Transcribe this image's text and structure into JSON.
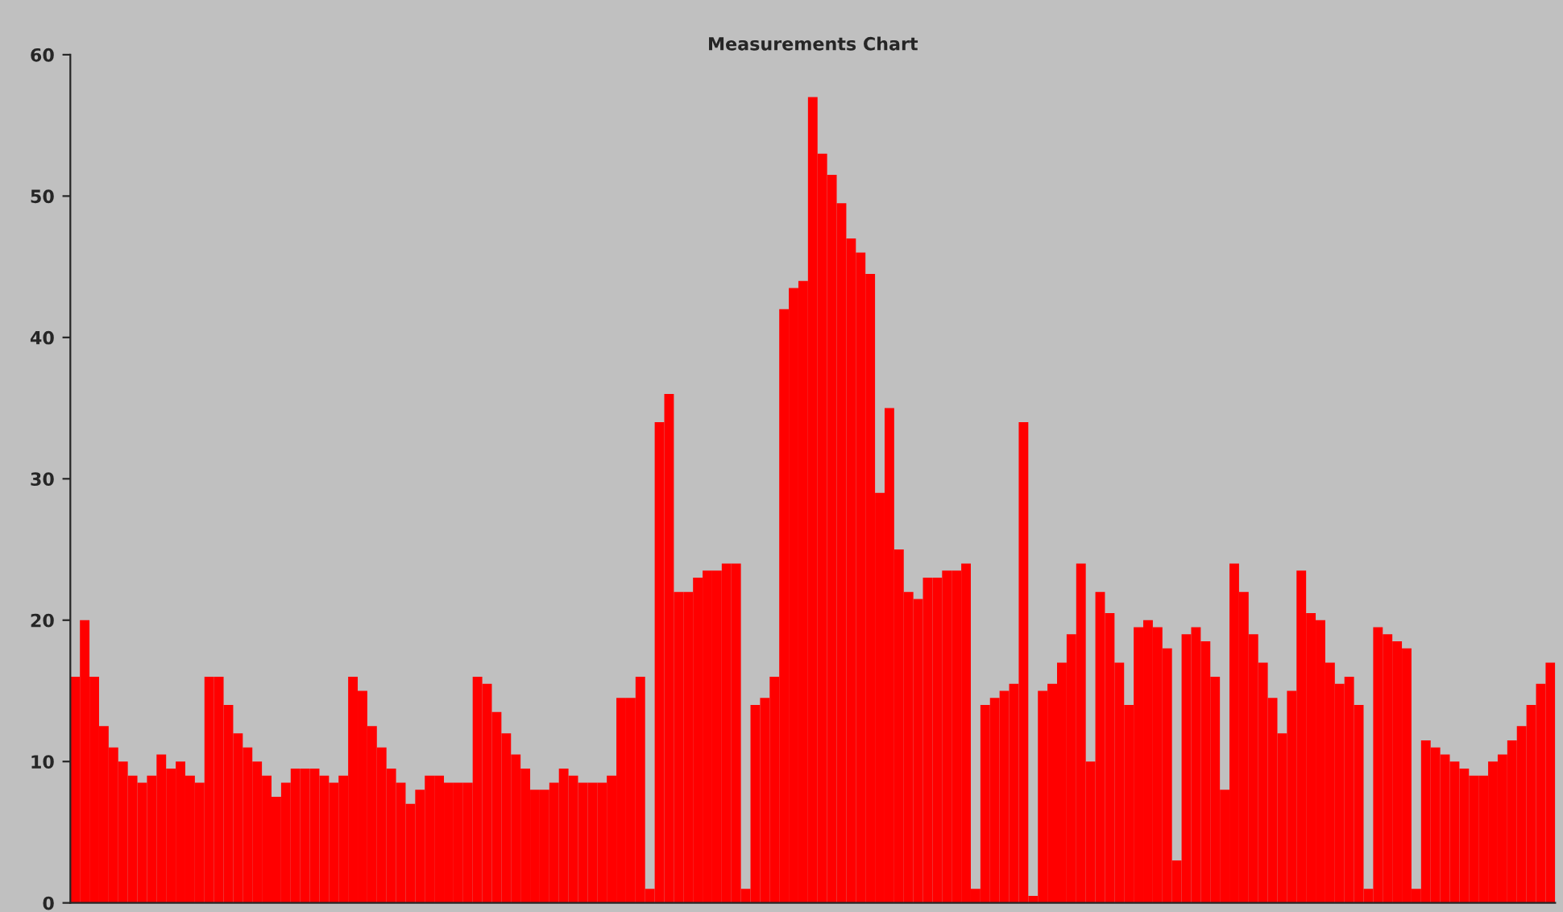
{
  "chart_data": {
    "type": "bar",
    "title": "Measurements Chart",
    "categories": [
      null,
      null,
      null,
      null,
      null,
      null,
      null,
      null,
      null,
      null,
      null,
      null,
      null,
      null,
      null,
      null,
      null,
      null,
      null,
      null,
      null,
      null,
      null,
      null,
      null,
      null,
      null,
      null,
      null,
      null,
      null,
      null,
      null,
      null,
      null,
      null,
      null,
      null,
      null,
      null,
      null,
      null,
      null,
      null,
      null,
      null,
      null,
      null,
      null,
      null,
      null,
      null,
      null,
      null,
      null,
      null,
      null,
      null,
      null,
      null,
      null,
      null,
      null,
      null,
      null,
      null,
      null,
      null,
      null,
      null,
      null,
      null,
      null,
      null,
      null,
      null,
      null,
      null,
      null,
      null,
      null,
      null,
      null,
      null,
      null,
      null,
      null,
      null,
      null,
      null,
      null,
      null,
      null,
      null,
      null,
      null,
      null,
      null,
      null,
      null,
      null,
      null,
      null,
      null,
      null,
      null,
      null,
      null,
      null,
      null,
      null,
      null,
      null,
      null,
      null,
      null,
      null,
      null,
      null,
      null,
      null,
      null,
      null,
      null,
      null,
      null,
      null,
      null,
      null,
      null,
      null,
      null,
      null,
      null,
      null,
      null,
      null,
      null,
      null,
      null,
      null,
      null,
      null,
      null,
      null,
      null,
      null,
      null,
      null,
      null,
      null,
      null,
      null,
      null,
      null
    ],
    "values": [
      16,
      20,
      16,
      12.5,
      11,
      10,
      9,
      8.5,
      9,
      10.5,
      9.5,
      10,
      9,
      8.5,
      16,
      16,
      14,
      12,
      11,
      10,
      9,
      7.5,
      8.5,
      9.5,
      9.5,
      9.5,
      9,
      8.5,
      9,
      16,
      15,
      12.5,
      11,
      9.5,
      8.5,
      7,
      8,
      9,
      9,
      8.5,
      8.5,
      8.5,
      16,
      15.5,
      13.5,
      12,
      10.5,
      9.5,
      8,
      8,
      8.5,
      9.5,
      9,
      8.5,
      8.5,
      8.5,
      9,
      14.5,
      14.5,
      16,
      1,
      34,
      36,
      22,
      22,
      23,
      23.5,
      23.5,
      24,
      24,
      1,
      14,
      14.5,
      16,
      42,
      43.5,
      44,
      57,
      53,
      51.5,
      49.5,
      47,
      46,
      44.5,
      29,
      35,
      25,
      22,
      21.5,
      23,
      23,
      23.5,
      23.5,
      24,
      1,
      14,
      14.5,
      15,
      15.5,
      34,
      0.5,
      15,
      15.5,
      17,
      19,
      24,
      10,
      22,
      20.5,
      17,
      14,
      19.5,
      20,
      19.5,
      18,
      3,
      19,
      19.5,
      18.5,
      16,
      8,
      24,
      22,
      19,
      17,
      14.5,
      12,
      15,
      23.5,
      20.5,
      20,
      17,
      15.5,
      16,
      14,
      1,
      19.5,
      19,
      18.5,
      18,
      1,
      11.5,
      11,
      10.5,
      10,
      9.5,
      9,
      9,
      10,
      10.5,
      11.5,
      12.5,
      14,
      15.5,
      17
    ],
    "color": "#ff0000",
    "ylim": [
      0,
      60
    ],
    "yticks": [
      0,
      10,
      20,
      30,
      40,
      50,
      60
    ],
    "tick_labels": "y",
    "grid": false,
    "legend": false
  }
}
